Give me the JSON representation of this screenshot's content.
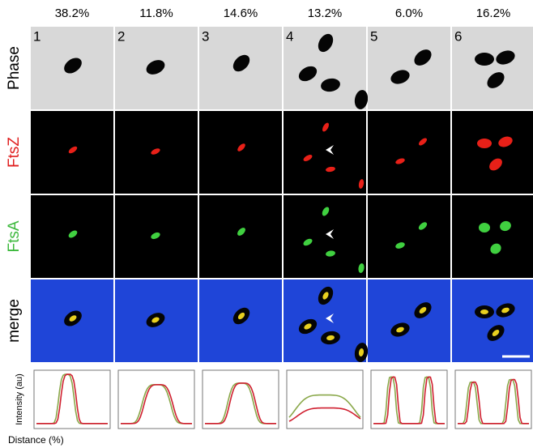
{
  "header": {
    "percentages": [
      "38.2%",
      "11.8%",
      "14.6%",
      "13.2%",
      "6.0%",
      "16.2%"
    ]
  },
  "panels": {
    "numbers": [
      "1",
      "2",
      "3",
      "4",
      "5",
      "6"
    ]
  },
  "rows": {
    "labels": [
      "Phase",
      "FtsZ",
      "FtsA",
      "merge"
    ]
  },
  "plots": {
    "y_label": "Intensity (au)",
    "x_label": "Distance (%)"
  }
}
